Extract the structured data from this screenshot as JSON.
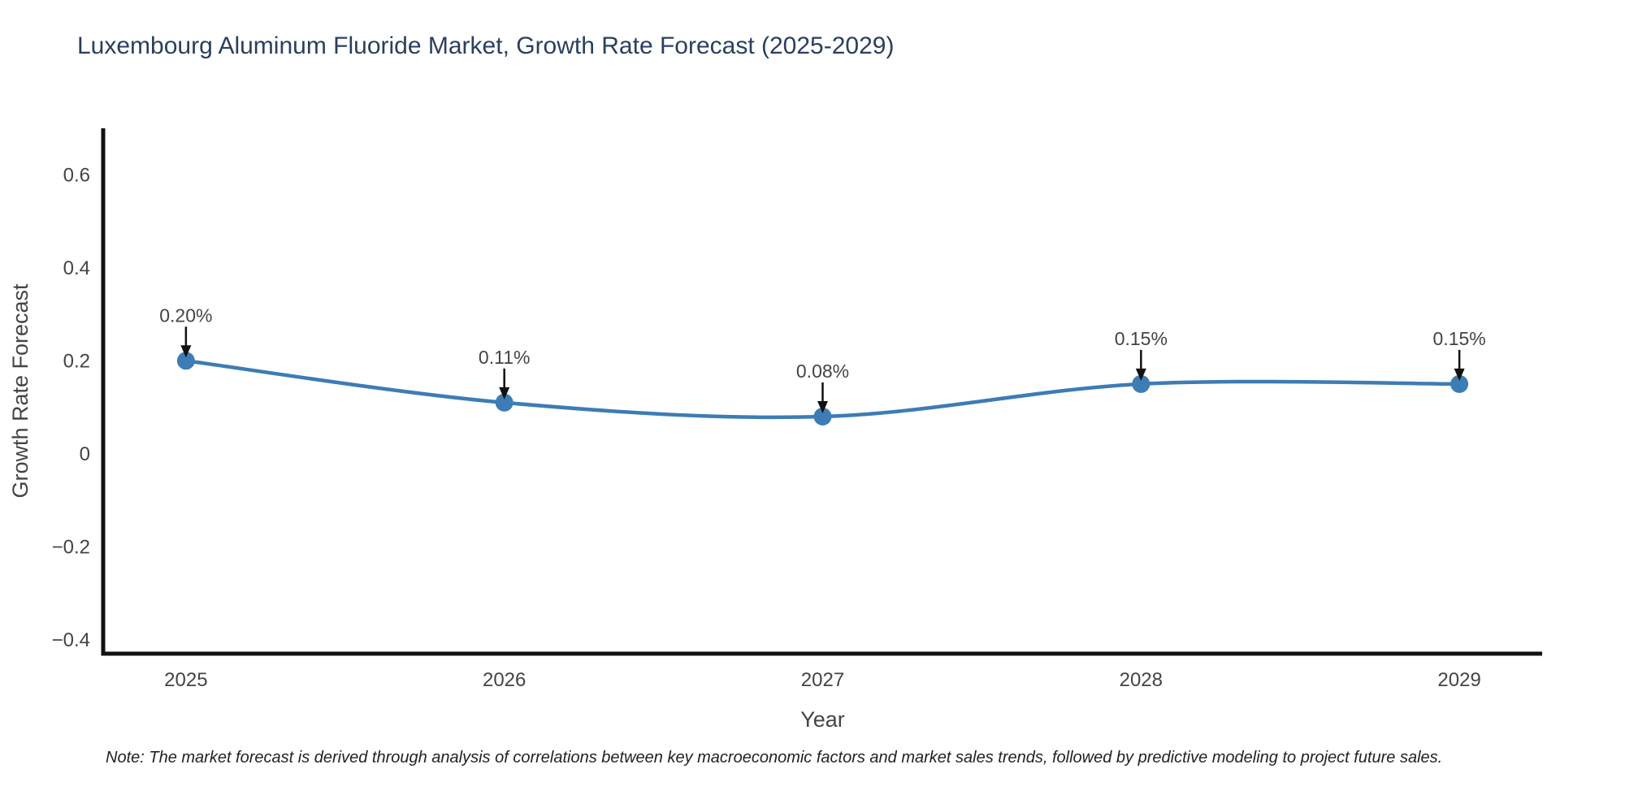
{
  "title": {
    "text": "Luxembourg Aluminum Fluoride Market, Growth Rate Forecast (2025-2029)",
    "color": "#2a3f5f"
  },
  "footnote": {
    "text": "Note: The market forecast is derived through analysis of correlations between key macroeconomic factors and market sales trends, followed by predictive modeling to project future sales."
  },
  "chart_data": {
    "type": "line",
    "line_shape": "spline",
    "title": "Luxembourg Aluminum Fluoride Market, Growth Rate Forecast (2025-2029)",
    "xlabel": "Year",
    "ylabel": "Growth Rate Forecast",
    "x": [
      2025,
      2026,
      2027,
      2028,
      2029
    ],
    "x_labels": [
      "2025",
      "2026",
      "2027",
      "2028",
      "2029"
    ],
    "series": [
      {
        "name": "Growth Rate Forecast",
        "values": [
          0.2,
          0.11,
          0.08,
          0.15,
          0.15
        ]
      }
    ],
    "annotations": [
      {
        "x": 2025,
        "y": 0.2,
        "text": "0.20%"
      },
      {
        "x": 2026,
        "y": 0.11,
        "text": "0.11%"
      },
      {
        "x": 2027,
        "y": 0.08,
        "text": "0.08%"
      },
      {
        "x": 2028,
        "y": 0.15,
        "text": "0.15%"
      },
      {
        "x": 2029,
        "y": 0.15,
        "text": "0.15%"
      }
    ],
    "yticks": [
      0.6,
      0.4,
      0.2,
      0,
      -0.2,
      -0.4
    ],
    "ytick_labels": [
      "0.6",
      "0.4",
      "0.2",
      "0",
      "−0.2",
      "−0.4"
    ],
    "xlim": [
      2024.74,
      2029.26
    ],
    "ylim": [
      -0.43,
      0.7
    ],
    "grid": false,
    "legend": "none",
    "colors": {
      "background": "#ffffff",
      "title": "#2a3f5f",
      "line": "#3d7cb5",
      "marker": "#3d7cb5",
      "axis": "#111111",
      "tick_text": "#444444",
      "axis_title_text": "#444444",
      "annotation_text": "#444444",
      "arrow": "#111111"
    }
  }
}
